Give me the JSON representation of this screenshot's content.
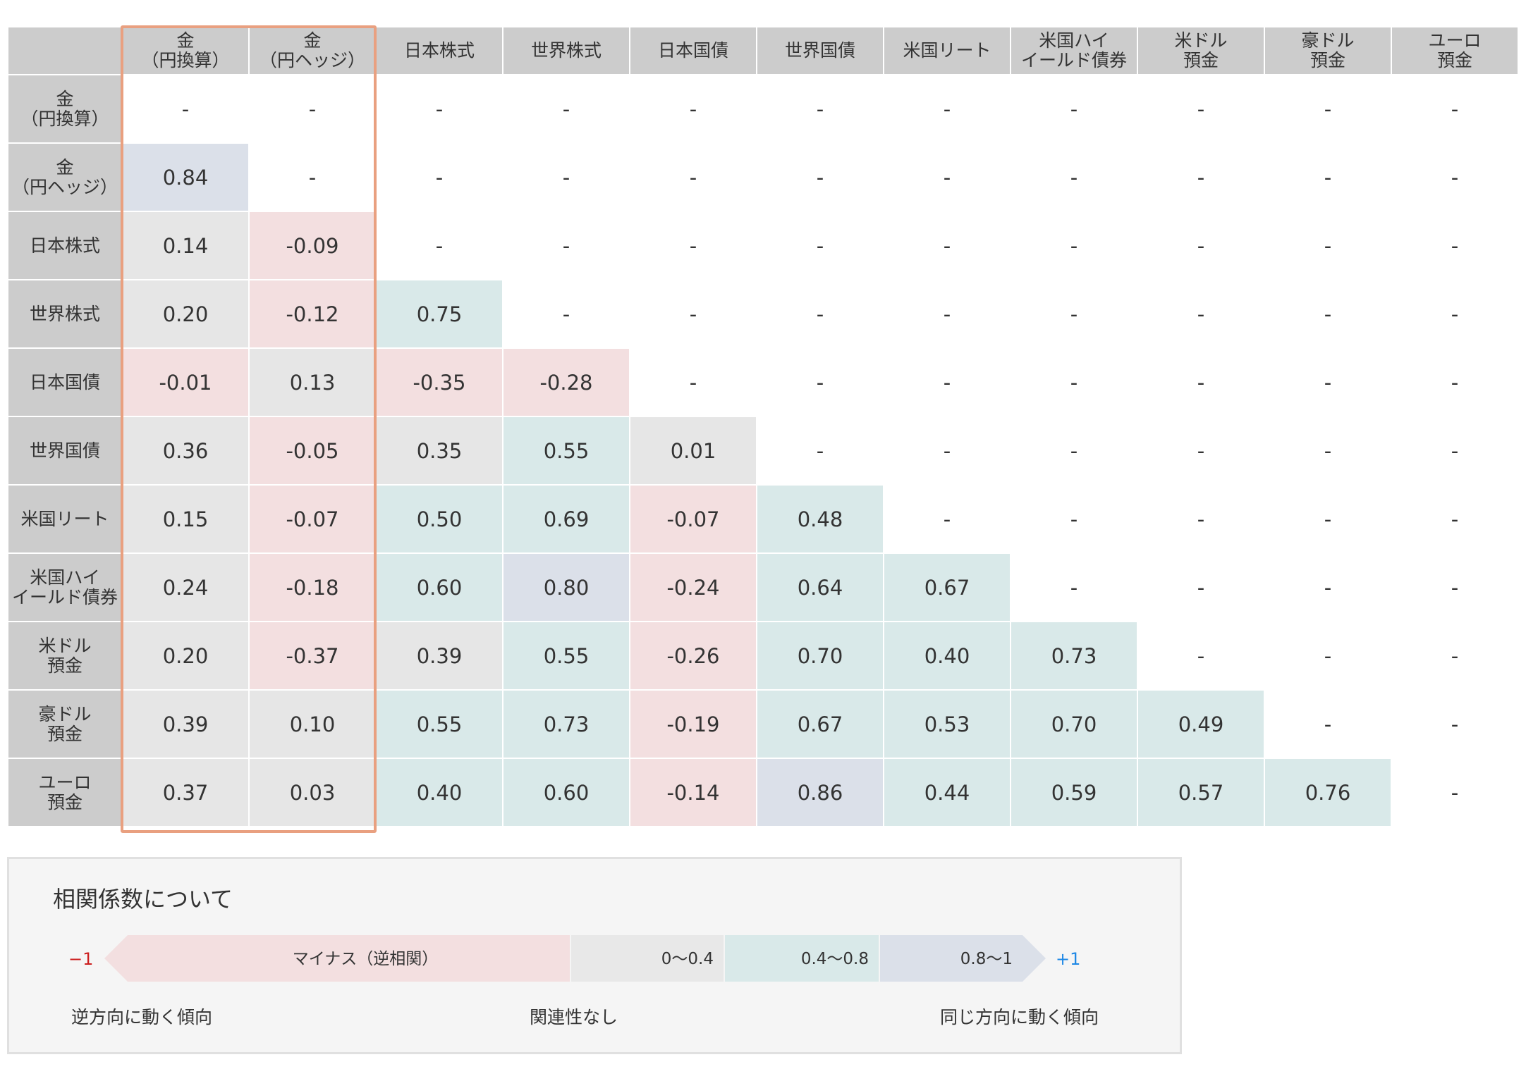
{
  "chart_data": {
    "type": "table",
    "headers": [
      "金\n（円換算）",
      "金\n（円ヘッジ）",
      "日本株式",
      "世界株式",
      "日本国債",
      "世界国債",
      "米国リート",
      "米国ハイ\nイールド債券",
      "米ドル\n預金",
      "豪ドル\n預金",
      "ユーロ\n預金"
    ],
    "rows": [
      {
        "label": "金\n（円換算）",
        "values": [
          "-",
          "-",
          "-",
          "-",
          "-",
          "-",
          "-",
          "-",
          "-",
          "-",
          "-"
        ]
      },
      {
        "label": "金\n（円ヘッジ）",
        "values": [
          "0.84",
          "-",
          "-",
          "-",
          "-",
          "-",
          "-",
          "-",
          "-",
          "-",
          "-"
        ]
      },
      {
        "label": "日本株式",
        "values": [
          "0.14",
          "-0.09",
          "-",
          "-",
          "-",
          "-",
          "-",
          "-",
          "-",
          "-",
          "-"
        ]
      },
      {
        "label": "世界株式",
        "values": [
          "0.20",
          "-0.12",
          "0.75",
          "-",
          "-",
          "-",
          "-",
          "-",
          "-",
          "-",
          "-"
        ]
      },
      {
        "label": "日本国債",
        "values": [
          "-0.01",
          "0.13",
          "-0.35",
          "-0.28",
          "-",
          "-",
          "-",
          "-",
          "-",
          "-",
          "-"
        ]
      },
      {
        "label": "世界国債",
        "values": [
          "0.36",
          "-0.05",
          "0.35",
          "0.55",
          "0.01",
          "-",
          "-",
          "-",
          "-",
          "-",
          "-"
        ]
      },
      {
        "label": "米国リート",
        "values": [
          "0.15",
          "-0.07",
          "0.50",
          "0.69",
          "-0.07",
          "0.48",
          "-",
          "-",
          "-",
          "-",
          "-"
        ]
      },
      {
        "label": "米国ハイ\nイールド債券",
        "values": [
          "0.24",
          "-0.18",
          "0.60",
          "0.80",
          "-0.24",
          "0.64",
          "0.67",
          "-",
          "-",
          "-",
          "-"
        ]
      },
      {
        "label": "米ドル\n預金",
        "values": [
          "0.20",
          "-0.37",
          "0.39",
          "0.55",
          "-0.26",
          "0.70",
          "0.40",
          "0.73",
          "-",
          "-",
          "-"
        ]
      },
      {
        "label": "豪ドル\n預金",
        "values": [
          "0.39",
          "0.10",
          "0.55",
          "0.73",
          "-0.19",
          "0.67",
          "0.53",
          "0.70",
          "0.49",
          "-",
          "-"
        ]
      },
      {
        "label": "ユーロ\n預金",
        "values": [
          "0.37",
          "0.03",
          "0.40",
          "0.60",
          "-0.14",
          "0.86",
          "0.44",
          "0.59",
          "0.57",
          "0.76",
          "-"
        ]
      }
    ],
    "highlight_columns": [
      0,
      1
    ],
    "colors": {
      "negative": "#f3dfe0",
      "low": "#e6e6e6",
      "mid": "#d9e9e9",
      "high": "#dbe0e9",
      "header": "#cccccc",
      "highlight_border": "#e9a080"
    }
  },
  "legend": {
    "title": "相関係数について",
    "min_label": "−1",
    "max_label": "+1",
    "segments": [
      {
        "label": "マイナス（逆相関）",
        "color": "#f3dfe0"
      },
      {
        "label": "0〜0.4",
        "color": "#e8e8e8"
      },
      {
        "label": "0.4〜0.8",
        "color": "#d9e9e9"
      },
      {
        "label": "0.8〜1",
        "color": "#dbe0e9"
      }
    ],
    "captions": {
      "left": "逆方向に動く傾向",
      "center": "関連性なし",
      "right": "同じ方向に動く傾向"
    },
    "min_color": "#cc1f1f",
    "max_color": "#1e88e5"
  }
}
